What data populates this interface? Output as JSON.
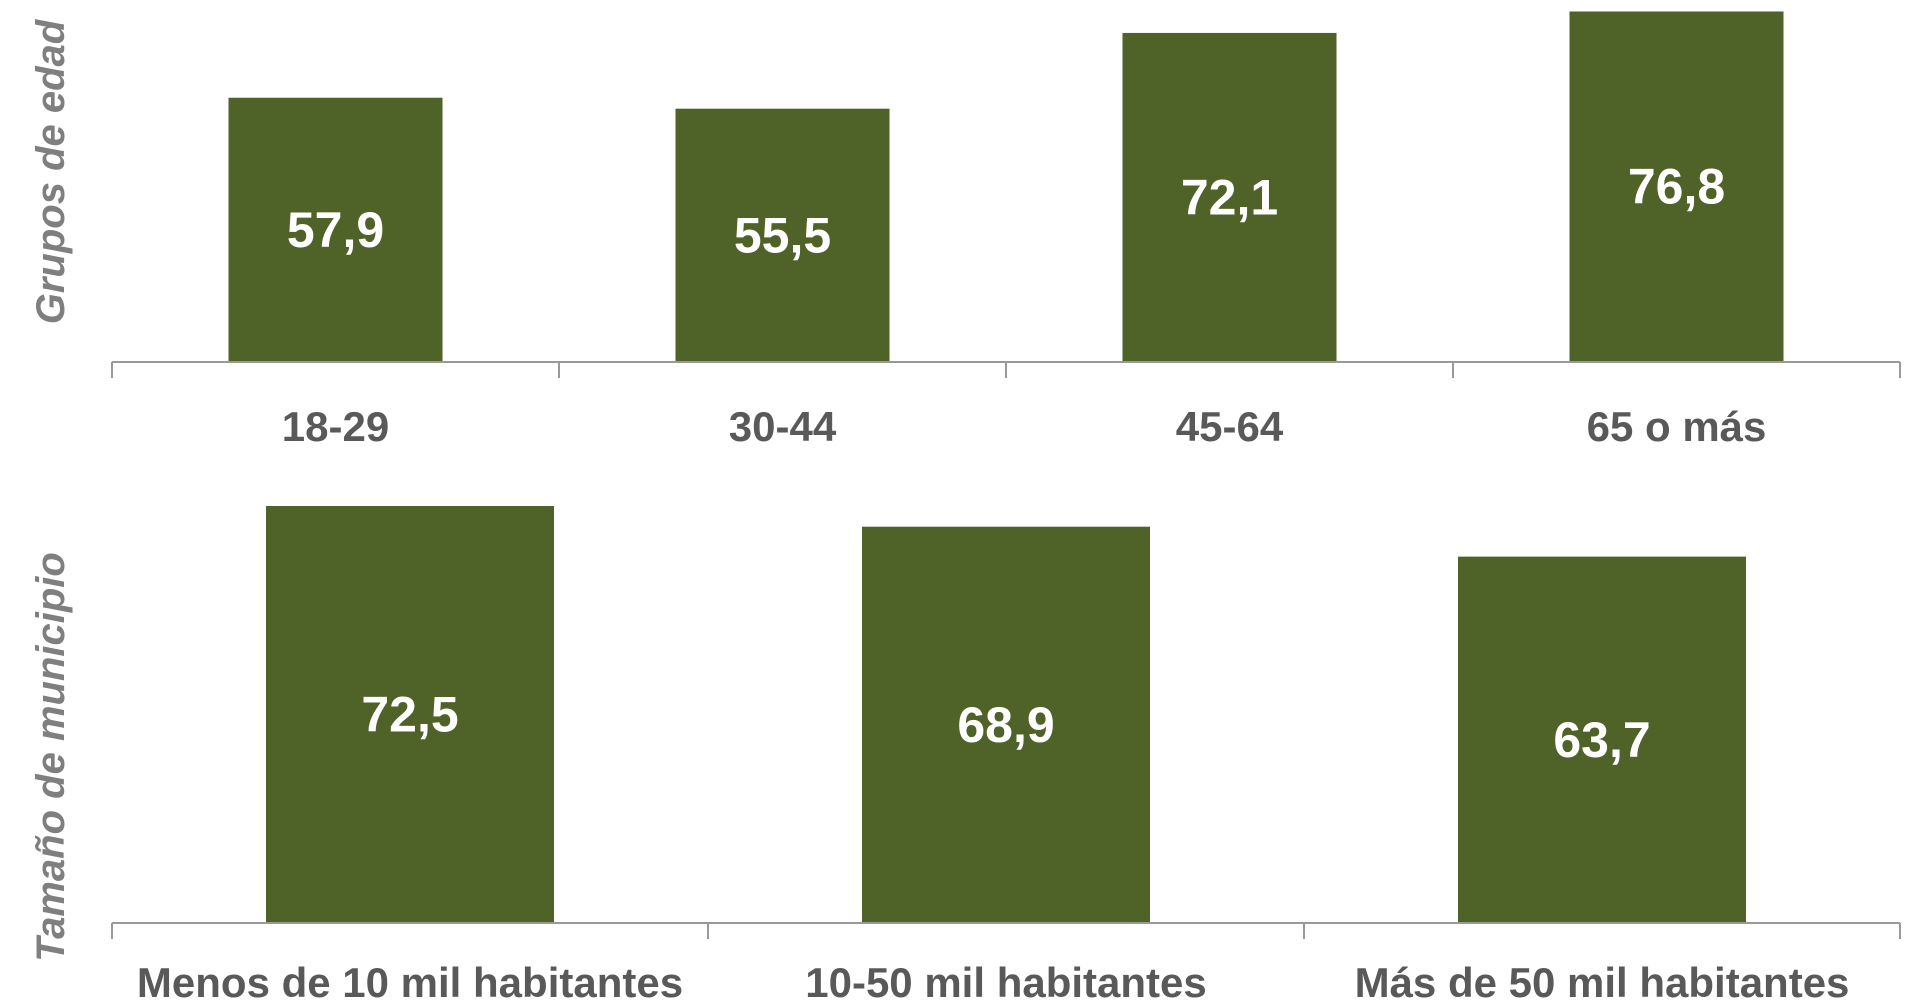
{
  "colors": {
    "bar": "#4f6228",
    "axis": "#999999",
    "tick_text": "#595959",
    "group_text": "#7f7f7f",
    "data_label_text": "#ffffff"
  },
  "chart_data": [
    {
      "type": "bar",
      "ylabel": "Grupos de edad",
      "categories": [
        "18-29",
        "30-44",
        "45-64",
        "65 o más"
      ],
      "values": [
        57.9,
        55.5,
        72.1,
        76.8
      ],
      "value_labels": [
        "57,9",
        "55,5",
        "72,1",
        "76,8"
      ],
      "ylim": [
        0,
        78
      ],
      "grid": false,
      "legend": "none"
    },
    {
      "type": "bar",
      "ylabel": "Tamaño de municipio",
      "categories": [
        "Menos de 10 mil habitantes",
        "10-50 mil habitantes",
        "Más de 50 mil habitantes"
      ],
      "values": [
        72.5,
        68.9,
        63.7
      ],
      "value_labels": [
        "72,5",
        "68,9",
        "63,7"
      ],
      "ylim": [
        0,
        72.5
      ],
      "grid": false,
      "legend": "none"
    }
  ]
}
